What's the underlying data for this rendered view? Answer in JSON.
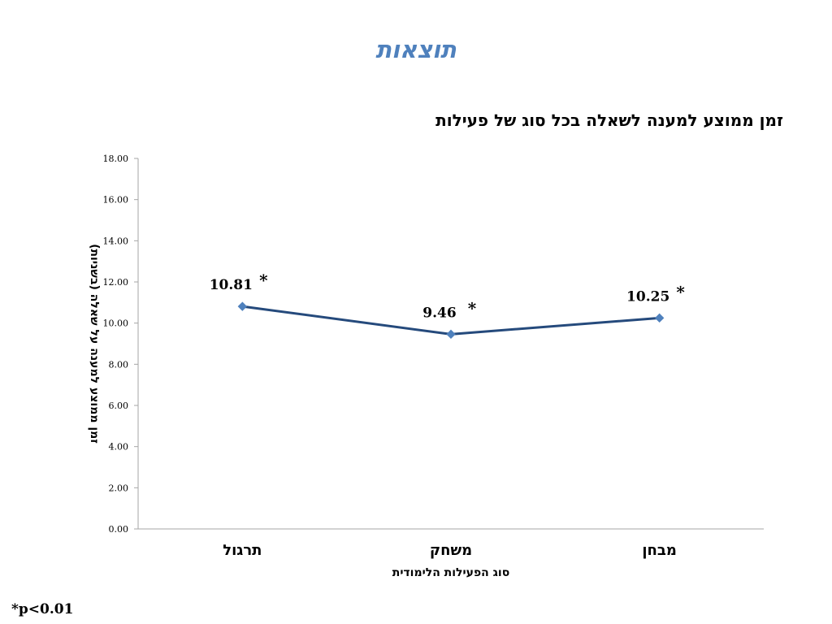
{
  "slide": {
    "title": "תוצאות",
    "footnote": "*p<0.01"
  },
  "colors": {
    "title": "#4f81bd",
    "series_line": "#254a7c",
    "marker": "#4f81bd",
    "axis": "#a6a6a6"
  },
  "chart_data": {
    "type": "line",
    "title": "זמן ממוצע למענה לשאלה בכל סוג של פעילות",
    "xlabel": "סוג הפעילות הלימודית",
    "ylabel": "זמן ממוצע למענה על שאלה (בשניות)",
    "categories": [
      "תרגול",
      "משחק",
      "מבחן"
    ],
    "series": [
      {
        "values": [
          10.81,
          9.46,
          10.25
        ],
        "data_labels": [
          "10.81",
          "9.46",
          "10.25"
        ],
        "significance_marks": [
          "*",
          "*",
          "*"
        ]
      }
    ],
    "ylim": [
      0,
      18
    ],
    "yticks": [
      0,
      2,
      4,
      6,
      8,
      10,
      12,
      14,
      16,
      18
    ],
    "ytick_labels": [
      "0.00",
      "2.00",
      "4.00",
      "6.00",
      "8.00",
      "10.00",
      "12.00",
      "14.00",
      "16.00",
      "18.00"
    ],
    "grid": false,
    "legend": "none",
    "marker": "diamond"
  }
}
